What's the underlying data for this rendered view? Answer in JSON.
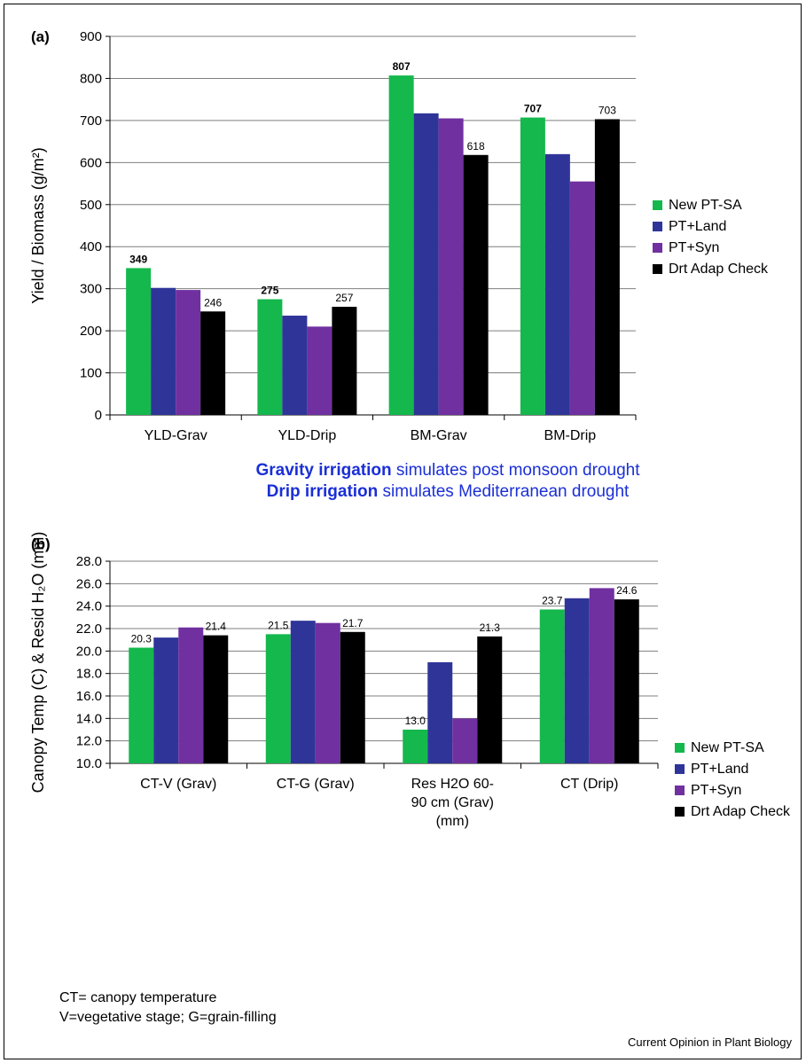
{
  "credit": "Current Opinion in Plant Biology",
  "note": {
    "line1_bold": "Gravity irrigation",
    "line1_rest": " simulates post monsoon drought",
    "line2_bold": "Drip irrigation",
    "line2_rest": " simulates Mediterranean drought"
  },
  "definitions": {
    "line1": "CT= canopy temperature",
    "line2": "V=vegetative stage; G=grain-filling"
  },
  "colors": {
    "New PT-SA": "#14b84c",
    "PT+Land": "#2f3598",
    "PT+Syn": "#7030a0",
    "Drt Adap Check": "#000000"
  },
  "chart_data": [
    {
      "type": "bar",
      "panel_label": "(a)",
      "ylabel": "Yield / Biomass (g/m²)",
      "ylim": [
        0,
        900
      ],
      "ytick_step": 100,
      "ytick_decimals": 0,
      "grid": true,
      "legend_position": "right",
      "categories": [
        "YLD-Grav",
        "YLD-Drip",
        "BM-Grav",
        "BM-Drip"
      ],
      "series": [
        {
          "name": "New PT-SA",
          "values": [
            349,
            275,
            807,
            707
          ],
          "labels": [
            "349",
            "275",
            "807",
            "707"
          ],
          "label_bold": true
        },
        {
          "name": "PT+Land",
          "values": [
            302,
            236,
            717,
            620
          ],
          "labels": [
            "",
            "",
            "",
            ""
          ],
          "label_bold": false
        },
        {
          "name": "PT+Syn",
          "values": [
            297,
            210,
            705,
            555
          ],
          "labels": [
            "",
            "",
            "",
            ""
          ],
          "label_bold": false
        },
        {
          "name": "Drt Adap Check",
          "values": [
            246,
            257,
            618,
            703
          ],
          "labels": [
            "246",
            "257",
            "618",
            "703"
          ],
          "label_bold": false
        }
      ]
    },
    {
      "type": "bar",
      "panel_label": "(b)",
      "ylabel": "Canopy Temp (C) & Resid H₂O (mm)",
      "ylim": [
        10,
        28
      ],
      "ytick_step": 2,
      "ytick_decimals": 1,
      "grid": true,
      "legend_position": "right",
      "categories": [
        "CT-V (Grav)",
        "CT-G (Grav)",
        "Res H2O 60-90 cm (Grav) (mm)",
        "CT (Drip)"
      ],
      "category_lines": [
        [
          "CT-V (Grav)"
        ],
        [
          "CT-G (Grav)"
        ],
        [
          "Res H2O 60-",
          "90 cm (Grav)",
          "(mm)"
        ],
        [
          "CT (Drip)"
        ]
      ],
      "series": [
        {
          "name": "New PT-SA",
          "values": [
            20.3,
            21.5,
            13.0,
            23.7
          ],
          "labels": [
            "20.3",
            "21.5",
            "13.0",
            "23.7"
          ],
          "label_bold": false
        },
        {
          "name": "PT+Land",
          "values": [
            21.2,
            22.7,
            19.0,
            24.7
          ],
          "labels": [
            "",
            "",
            "",
            ""
          ],
          "label_bold": false
        },
        {
          "name": "PT+Syn",
          "values": [
            22.1,
            22.5,
            14.0,
            25.6
          ],
          "labels": [
            "",
            "",
            "",
            ""
          ],
          "label_bold": false
        },
        {
          "name": "Drt Adap Check",
          "values": [
            21.4,
            21.7,
            21.3,
            24.6
          ],
          "labels": [
            "21.4",
            "21.7",
            "21.3",
            "24.6"
          ],
          "label_bold": false
        }
      ]
    }
  ]
}
